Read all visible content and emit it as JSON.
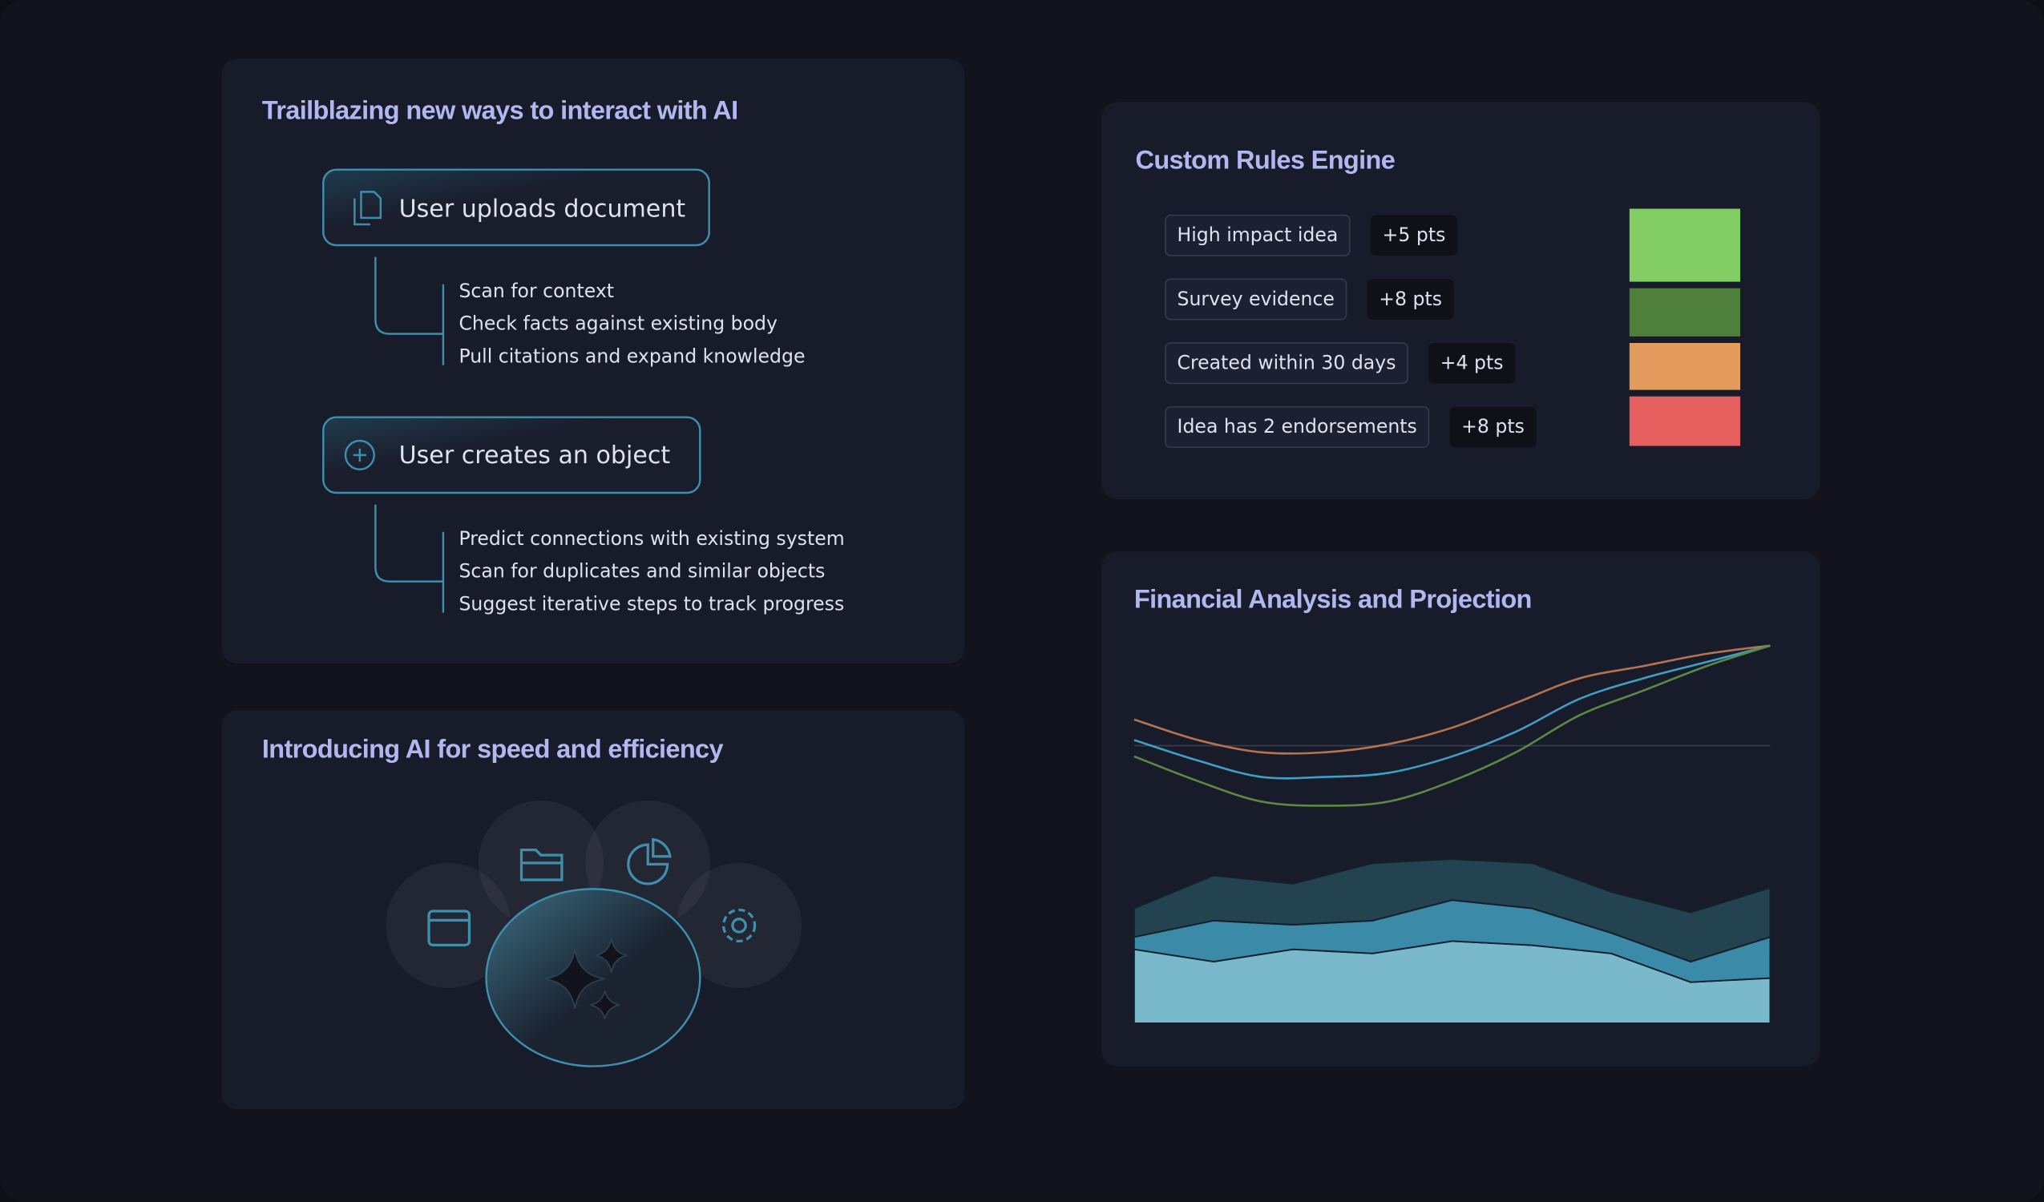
{
  "cards": {
    "interact": {
      "title": "Trailblazing new ways to interact with AI",
      "flows": [
        {
          "label": "User uploads document",
          "steps": [
            "Scan for context",
            "Check facts against existing body",
            "Pull citations and expand knowledge"
          ]
        },
        {
          "label": "User creates an object",
          "steps": [
            "Predict connections with existing system",
            "Scan for duplicates and similar objects",
            "Suggest iterative steps to track progress"
          ]
        }
      ]
    },
    "speed": {
      "title": "Introducing AI for speed and efficiency"
    },
    "rules": {
      "title": "Custom Rules Engine",
      "items": [
        {
          "rule": "High impact idea",
          "points": "+5 pts",
          "color": "#82cd64"
        },
        {
          "rule": "Survey evidence",
          "points": "+8 pts",
          "color": "#4e7f3b"
        },
        {
          "rule": "Created within 30 days",
          "points": "+4 pts",
          "color": "#e39b5e"
        },
        {
          "rule": "Idea has 2 endorsements",
          "points": "+8 pts",
          "color": "#e45f5d"
        }
      ]
    }
  },
  "chart_data": {
    "type": "line",
    "title": "Financial Analysis and Projection",
    "ylim": [
      0,
      100
    ],
    "lines": [
      {
        "color": "#b5744f",
        "values": [
          74,
          69,
          66,
          66,
          68,
          72,
          78,
          84,
          87,
          90,
          92
        ]
      },
      {
        "color": "#3f9fc4",
        "values": [
          69,
          64,
          60,
          60,
          61,
          65,
          71,
          79,
          84,
          88,
          92
        ]
      },
      {
        "color": "#5a8a44",
        "values": [
          65,
          59,
          54,
          53,
          54,
          59,
          66,
          75,
          81,
          87,
          92
        ]
      }
    ],
    "areas": [
      {
        "color": "#7ab8cc",
        "values": [
          18,
          15,
          18,
          17,
          20,
          19,
          17,
          10,
          11
        ]
      },
      {
        "color": "#3a8aa8",
        "values": [
          3,
          10,
          6,
          8,
          10,
          9,
          5,
          5,
          10
        ]
      },
      {
        "color": "#22434f",
        "values": [
          7,
          11,
          10,
          14,
          10,
          11,
          10,
          12,
          12
        ]
      }
    ]
  }
}
